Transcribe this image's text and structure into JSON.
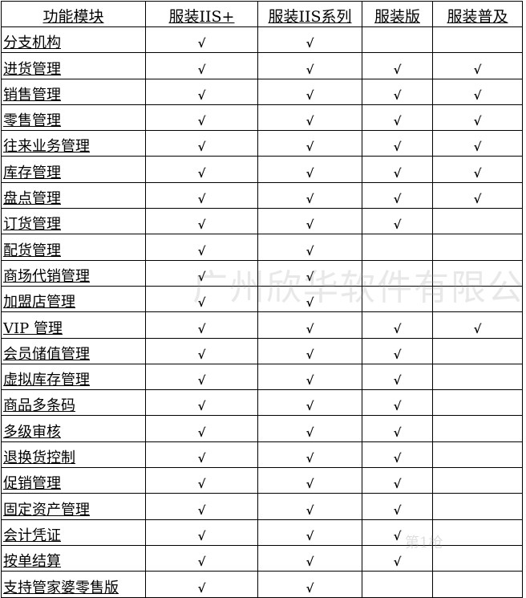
{
  "table": {
    "headers": [
      "功能模块",
      "服装IIS+",
      "服装IIS系列",
      "服装版",
      "服装普及"
    ],
    "check_mark": "√",
    "rows": [
      {
        "name": "分支机构",
        "checks": [
          true,
          true,
          false,
          false
        ]
      },
      {
        "name": "进货管理",
        "checks": [
          true,
          true,
          true,
          true
        ]
      },
      {
        "name": "销售管理",
        "checks": [
          true,
          true,
          true,
          true
        ]
      },
      {
        "name": "零售管理",
        "checks": [
          true,
          true,
          true,
          true
        ]
      },
      {
        "name": "往来业务管理",
        "checks": [
          true,
          true,
          true,
          true
        ]
      },
      {
        "name": "库存管理",
        "checks": [
          true,
          true,
          true,
          true
        ]
      },
      {
        "name": "盘点管理",
        "checks": [
          true,
          true,
          true,
          true
        ]
      },
      {
        "name": "订货管理",
        "checks": [
          true,
          true,
          true,
          false
        ]
      },
      {
        "name": "配货管理",
        "checks": [
          true,
          true,
          false,
          false
        ]
      },
      {
        "name": "商场代销管理",
        "checks": [
          true,
          true,
          false,
          false
        ]
      },
      {
        "name": "加盟店管理",
        "checks": [
          true,
          true,
          false,
          false
        ]
      },
      {
        "name": "VIP 管理",
        "checks": [
          true,
          true,
          true,
          true
        ]
      },
      {
        "name": "会员储值管理",
        "checks": [
          true,
          true,
          true,
          false
        ]
      },
      {
        "name": "虚拟库存管理",
        "checks": [
          true,
          true,
          true,
          false
        ]
      },
      {
        "name": "商品多条码",
        "checks": [
          true,
          true,
          true,
          false
        ]
      },
      {
        "name": "多级审核",
        "checks": [
          true,
          true,
          true,
          false
        ]
      },
      {
        "name": "退换货控制",
        "checks": [
          true,
          true,
          true,
          false
        ]
      },
      {
        "name": "促销管理",
        "checks": [
          true,
          true,
          true,
          false
        ]
      },
      {
        "name": "固定资产管理",
        "checks": [
          true,
          true,
          true,
          false
        ]
      },
      {
        "name": "会计凭证",
        "checks": [
          true,
          true,
          true,
          false
        ]
      },
      {
        "name": "按单结算",
        "checks": [
          true,
          true,
          true,
          false
        ]
      },
      {
        "name": "支持管家婆零售版",
        "checks": [
          true,
          true,
          false,
          false
        ]
      }
    ]
  },
  "watermark": "广州欣华软件有限公司",
  "logo_watermark": "第1枪"
}
